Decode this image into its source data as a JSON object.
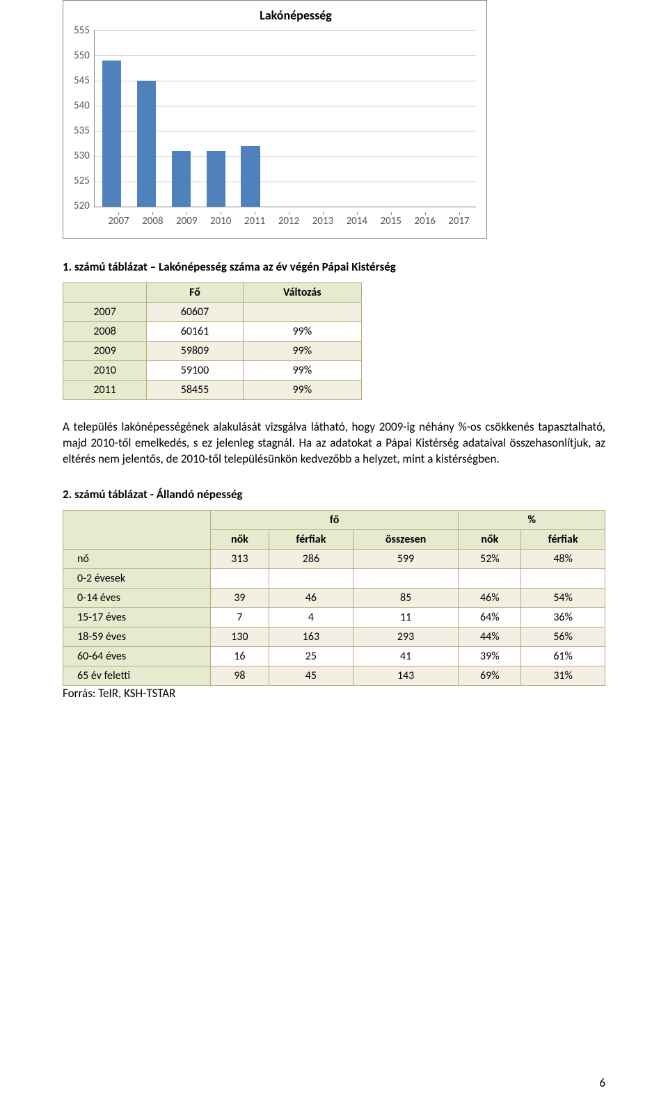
{
  "chart": {
    "title": "Lakónépesség",
    "title_fontsize": 18,
    "bar_color": "#4f81bd",
    "grid_color": "#cccccc",
    "axis_color": "#888888",
    "background_color": "#ffffff",
    "ylim": [
      520,
      555
    ],
    "ytick_step": 5,
    "yticks": [
      "555",
      "550",
      "545",
      "540",
      "535",
      "530",
      "525",
      "520"
    ],
    "categories": [
      "2007",
      "2008",
      "2009",
      "2010",
      "2011",
      "2012",
      "2013",
      "2014",
      "2015",
      "2016",
      "2017"
    ],
    "values": [
      549,
      545,
      531,
      531,
      532,
      null,
      null,
      null,
      null,
      null,
      null
    ],
    "label_fontsize": 15,
    "label_color": "#555555",
    "bar_width_ratio": 0.55
  },
  "heading1": "1.  számú táblázat – Lakónépesség száma az év végén Pápai Kistérség",
  "table1": {
    "headers": [
      "",
      "Fő",
      "Változás"
    ],
    "rows": [
      [
        "2007",
        "60607",
        ""
      ],
      [
        "2008",
        "60161",
        "99%"
      ],
      [
        "2009",
        "59809",
        "99%"
      ],
      [
        "2010",
        "59100",
        "99%"
      ],
      [
        "2011",
        "58455",
        "99%"
      ]
    ]
  },
  "paragraph": "A település lakónépességének alakulását vizsgálva látható, hogy 2009-ig néhány %-os csökkenés tapasztalható, majd 2010-től emelkedés, s ez jelenleg stagnál. Ha az adatokat a Pápai Kistérség adataival összehasonlítjuk, az eltérés nem jelentős, de 2010-től településünkön kedvezőbb a helyzet, mint a kistérségben.",
  "heading2": "2. számú táblázat - Állandó népesség",
  "table2": {
    "top_headers": [
      "fő",
      "%"
    ],
    "sub_headers": [
      "nők",
      "férfiak",
      "összesen",
      "nők",
      "férfiak"
    ],
    "row_labels": [
      "nő",
      "0-2 évesek",
      "0-14 éves",
      "15-17 éves",
      "18-59 éves",
      "60-64 éves",
      "65 év feletti"
    ],
    "rows": [
      [
        "313",
        "286",
        "599",
        "52%",
        "48%"
      ],
      [
        "",
        "",
        "",
        "",
        ""
      ],
      [
        "39",
        "46",
        "85",
        "46%",
        "54%"
      ],
      [
        "7",
        "4",
        "11",
        "64%",
        "36%"
      ],
      [
        "130",
        "163",
        "293",
        "44%",
        "56%"
      ],
      [
        "16",
        "25",
        "41",
        "39%",
        "61%"
      ],
      [
        "98",
        "45",
        "143",
        "69%",
        "31%"
      ]
    ]
  },
  "source": "Forrás: TeIR, KSH-TSTAR",
  "page_number": "6"
}
